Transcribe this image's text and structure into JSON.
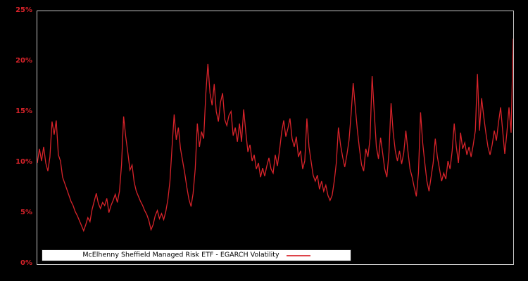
{
  "colors": {
    "background": "#000000",
    "line": "#d8232a",
    "axis_border": "#c8c8c8",
    "tick_label": "#d8232a",
    "legend_background": "#ffffff",
    "legend_text": "#000000"
  },
  "y_axis": {
    "ticks": [
      {
        "label": "0%",
        "value": 0
      },
      {
        "label": "5%",
        "value": 5
      },
      {
        "label": "10%",
        "value": 10
      },
      {
        "label": "15%",
        "value": 15
      },
      {
        "label": "20%",
        "value": 20
      },
      {
        "label": "25%",
        "value": 25
      }
    ]
  },
  "legend": {
    "label": "McElhenny Sheffield Managed Risk ETF - EGARCH Volatility",
    "position": "lower left"
  },
  "chart_data": {
    "type": "line",
    "title": "",
    "xlabel": "",
    "ylabel": "",
    "ylim": [
      0,
      25
    ],
    "ytick_labels": [
      "0%",
      "5%",
      "10%",
      "15%",
      "20%",
      "25%"
    ],
    "grid": false,
    "legend_position": "lower left",
    "series": [
      {
        "name": "McElhenny Sheffield Managed Risk ETF - EGARCH Volatility",
        "unit": "percent",
        "values": [
          10.0,
          11.4,
          10.2,
          11.6,
          10.0,
          9.2,
          10.6,
          14.1,
          12.8,
          14.2,
          10.8,
          10.2,
          8.6,
          8.0,
          7.4,
          6.8,
          6.2,
          5.8,
          5.2,
          4.8,
          4.3,
          3.8,
          3.3,
          3.9,
          4.6,
          4.2,
          5.4,
          6.2,
          7.0,
          6.0,
          5.5,
          6.1,
          5.8,
          6.5,
          5.1,
          5.8,
          6.3,
          6.9,
          6.1,
          7.2,
          9.8,
          14.6,
          12.6,
          11.0,
          9.3,
          9.8,
          8.1,
          7.2,
          6.7,
          6.2,
          5.8,
          5.3,
          4.9,
          4.3,
          3.4,
          3.9,
          4.8,
          5.3,
          4.5,
          5.0,
          4.4,
          5.2,
          6.4,
          8.2,
          11.6,
          14.8,
          12.3,
          13.5,
          11.4,
          10.2,
          9.0,
          7.6,
          6.4,
          5.7,
          7.0,
          9.4,
          13.9,
          11.6,
          13.1,
          12.4,
          16.8,
          19.8,
          16.9,
          15.7,
          17.8,
          15.1,
          14.1,
          16.0,
          16.9,
          14.3,
          13.7,
          14.7,
          15.1,
          12.7,
          13.5,
          12.1,
          13.9,
          12.1,
          15.3,
          13.1,
          11.1,
          11.8,
          10.2,
          10.8,
          9.4,
          10.0,
          8.6,
          9.5,
          8.7,
          9.7,
          10.5,
          9.4,
          9.0,
          10.8,
          9.7,
          11.2,
          13.0,
          14.2,
          12.6,
          13.4,
          14.4,
          12.4,
          11.6,
          12.6,
          10.6,
          11.2,
          9.4,
          10.2,
          14.4,
          11.6,
          10.2,
          8.8,
          8.2,
          8.8,
          7.4,
          8.2,
          7.2,
          7.8,
          6.8,
          6.3,
          6.8,
          8.2,
          10.0,
          13.5,
          11.8,
          10.6,
          9.6,
          10.8,
          12.2,
          14.8,
          17.9,
          15.5,
          13.2,
          11.4,
          9.8,
          9.2,
          11.4,
          10.6,
          12.4,
          18.6,
          15.0,
          11.6,
          10.4,
          12.5,
          11.0,
          9.4,
          8.6,
          11.0,
          15.9,
          13.0,
          11.2,
          10.2,
          11.2,
          9.9,
          11.0,
          13.2,
          11.2,
          9.4,
          8.6,
          7.6,
          6.7,
          9.0,
          15.0,
          12.0,
          10.0,
          8.2,
          7.2,
          8.6,
          10.0,
          12.4,
          10.6,
          9.4,
          8.2,
          9.0,
          8.4,
          10.2,
          9.4,
          11.2,
          13.9,
          11.6,
          10.0,
          13.0,
          11.4,
          12.0,
          10.8,
          11.6,
          10.6,
          11.8,
          13.2,
          18.8,
          13.2,
          16.4,
          14.6,
          13.0,
          11.6,
          10.8,
          11.8,
          13.2,
          12.2,
          14.0,
          15.5,
          13.2,
          10.9,
          13.0,
          15.5,
          13.0,
          22.3
        ]
      }
    ]
  }
}
